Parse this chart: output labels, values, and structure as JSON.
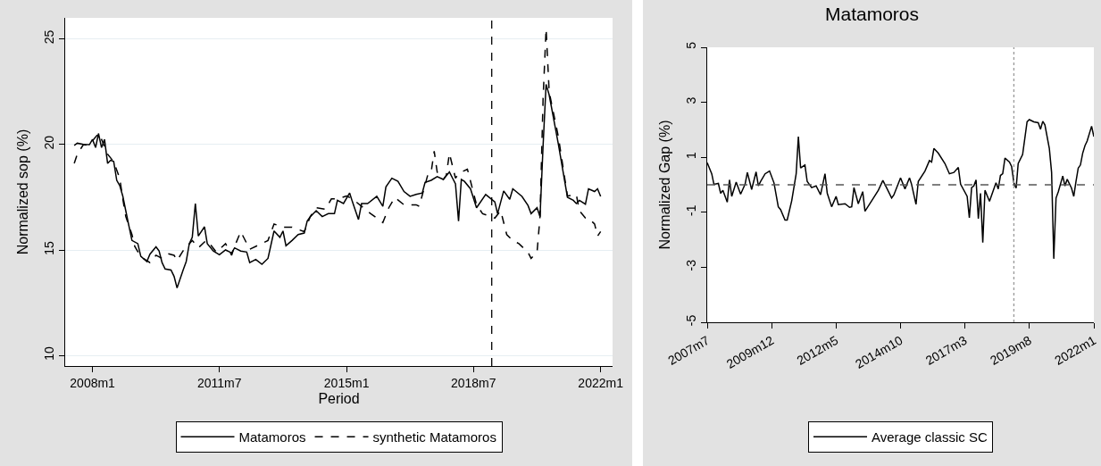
{
  "chart_data": [
    {
      "type": "line",
      "xlabel": "Period",
      "ylabel": "Normalized sop (%)",
      "xlim": [
        "2007-04",
        "2022-05"
      ],
      "ylim": [
        9.5,
        26
      ],
      "xticks": [
        {
          "value": "2008-01",
          "label": "2008m1"
        },
        {
          "value": "2011-07",
          "label": "2011m7"
        },
        {
          "value": "2015-01",
          "label": "2015m1"
        },
        {
          "value": "2018-07",
          "label": "2018m7"
        },
        {
          "value": "2022-01",
          "label": "2022m1"
        }
      ],
      "yticks": [
        10,
        15,
        20,
        25
      ],
      "grid": "y",
      "legend": "bottom",
      "series": [
        {
          "name": "Matamoros",
          "color": "#000000",
          "line_style": "solid",
          "x": [
            "2007-07",
            "2007-08",
            "2007-10",
            "2007-12",
            "2008-01",
            "2008-02",
            "2008-03",
            "2008-04",
            "2008-05",
            "2008-06",
            "2008-07",
            "2008-08",
            "2008-09",
            "2008-10",
            "2008-11",
            "2008-12",
            "2009-01",
            "2009-02",
            "2009-04",
            "2009-05",
            "2009-07",
            "2009-08",
            "2009-10",
            "2009-11",
            "2009-12",
            "2010-01",
            "2010-03",
            "2010-04",
            "2010-05",
            "2010-07",
            "2010-08",
            "2010-09",
            "2010-10",
            "2010-11",
            "2010-12",
            "2011-02",
            "2011-03",
            "2011-05",
            "2011-07",
            "2011-09",
            "2011-11",
            "2011-12",
            "2012-02",
            "2012-04",
            "2012-05",
            "2012-07",
            "2012-09",
            "2012-11",
            "2013-01",
            "2013-03",
            "2013-04",
            "2013-05",
            "2013-07",
            "2013-09",
            "2013-11",
            "2013-12",
            "2014-01",
            "2014-03",
            "2014-05",
            "2014-07",
            "2014-09",
            "2014-10",
            "2014-12",
            "2015-02",
            "2015-03",
            "2015-05",
            "2015-06",
            "2015-08",
            "2015-11",
            "2016-01",
            "2016-02",
            "2016-04",
            "2016-06",
            "2016-08",
            "2016-10",
            "2016-12",
            "2017-02",
            "2017-03",
            "2017-05",
            "2017-07",
            "2017-09",
            "2017-11",
            "2018-01",
            "2018-02",
            "2018-03",
            "2018-04",
            "2018-06",
            "2018-08",
            "2018-11",
            "2019-02",
            "2019-03",
            "2019-05",
            "2019-07",
            "2019-08",
            "2019-11",
            "2020-01",
            "2020-02",
            "2020-04",
            "2020-05",
            "2020-06",
            "2020-07",
            "2020-08",
            "2020-11",
            "2021-02",
            "2021-04",
            "2021-05",
            "2021-06",
            "2021-08",
            "2021-09",
            "2021-11",
            "2021-12",
            "2022-01"
          ],
          "values": [
            19.96,
            20.06,
            20.0,
            19.99,
            20.24,
            19.85,
            20.52,
            19.85,
            20.24,
            19.1,
            19.25,
            19.2,
            18.3,
            18.05,
            17.55,
            16.85,
            16.15,
            15.45,
            15.3,
            14.7,
            14.45,
            14.8,
            15.15,
            14.95,
            14.4,
            14.1,
            14.05,
            13.75,
            13.2,
            14.05,
            14.45,
            15.3,
            15.6,
            17.2,
            15.66,
            16.1,
            15.3,
            14.95,
            14.77,
            15.0,
            14.86,
            15.1,
            14.95,
            14.9,
            14.4,
            14.55,
            14.32,
            14.6,
            15.9,
            15.6,
            15.9,
            15.2,
            15.45,
            15.73,
            15.8,
            16.37,
            16.58,
            16.86,
            16.58,
            16.72,
            16.72,
            17.35,
            17.2,
            17.7,
            17.28,
            16.44,
            17.2,
            17.2,
            17.54,
            17.07,
            17.99,
            18.4,
            18.25,
            17.77,
            17.54,
            17.63,
            17.7,
            18.2,
            18.3,
            18.48,
            18.34,
            18.7,
            18.13,
            16.37,
            18.34,
            18.25,
            17.9,
            17.0,
            17.63,
            17.28,
            16.72,
            17.8,
            17.4,
            17.9,
            17.54,
            17.11,
            16.72,
            17.0,
            16.58,
            19.96,
            22.85,
            22.35,
            20.03,
            17.5,
            17.35,
            17.2,
            17.35,
            17.17,
            17.9,
            17.77,
            17.9,
            17.54
          ]
        },
        {
          "name": "synthetic Matamoros",
          "color": "#000000",
          "line_style": "dashed",
          "x": [
            "2007-07",
            "2007-08",
            "2007-10",
            "2007-12",
            "2008-01",
            "2008-03",
            "2008-04",
            "2008-06",
            "2008-08",
            "2008-10",
            "2008-11",
            "2008-12",
            "2009-02",
            "2009-03",
            "2009-05",
            "2009-08",
            "2009-10",
            "2009-12",
            "2010-02",
            "2010-04",
            "2010-05",
            "2010-07",
            "2010-10",
            "2010-12",
            "2011-02",
            "2011-03",
            "2011-06",
            "2011-09",
            "2011-11",
            "2011-12",
            "2012-02",
            "2012-05",
            "2012-08",
            "2012-11",
            "2013-01",
            "2013-04",
            "2013-07",
            "2013-11",
            "2014-01",
            "2014-03",
            "2014-06",
            "2014-08",
            "2014-10",
            "2015-01",
            "2015-03",
            "2015-06",
            "2015-09",
            "2016-01",
            "2016-03",
            "2016-05",
            "2016-08",
            "2016-12",
            "2017-01",
            "2017-04",
            "2017-05",
            "2017-06",
            "2017-07",
            "2017-09",
            "2017-10",
            "2017-11",
            "2018-01",
            "2018-02",
            "2018-05",
            "2018-06",
            "2018-08",
            "2018-10",
            "2019-02",
            "2019-04",
            "2019-06",
            "2019-08",
            "2019-10",
            "2020-01",
            "2020-02",
            "2020-04",
            "2020-05",
            "2020-06",
            "2020-07",
            "2020-08",
            "2020-11",
            "2021-02",
            "2021-05",
            "2021-06",
            "2021-08",
            "2021-09",
            "2021-11",
            "2021-12",
            "2022-01"
          ],
          "values": [
            19.1,
            19.54,
            19.99,
            19.96,
            20.17,
            20.52,
            20.24,
            19.54,
            19.18,
            18.4,
            17.42,
            16.58,
            15.73,
            15.17,
            14.68,
            14.4,
            14.75,
            14.6,
            14.82,
            14.75,
            14.5,
            14.96,
            15.45,
            15.1,
            15.38,
            15.45,
            14.89,
            15.3,
            14.75,
            15.17,
            15.87,
            15.03,
            15.24,
            15.45,
            16.23,
            16.08,
            16.08,
            15.87,
            16.58,
            17.0,
            16.93,
            17.42,
            17.42,
            17.56,
            17.42,
            17.07,
            16.72,
            16.3,
            17.0,
            17.49,
            17.14,
            17.14,
            17.07,
            18.62,
            18.69,
            19.68,
            18.69,
            18.34,
            18.55,
            19.58,
            18.4,
            18.62,
            18.83,
            18.27,
            17.14,
            16.72,
            16.51,
            16.86,
            15.73,
            15.45,
            15.3,
            14.89,
            14.6,
            14.89,
            16.58,
            22.2,
            25.48,
            22.49,
            20.38,
            17.56,
            17.63,
            16.86,
            16.51,
            16.51,
            16.23,
            15.66,
            15.87
          ]
        }
      ],
      "ref_lines": [
        {
          "axis": "x",
          "value": "2019-01",
          "color": "#000000",
          "line_style": "dashed"
        }
      ]
    },
    {
      "type": "line",
      "title": "Matamoros",
      "ylabel": "Normalized Gap (%)",
      "xlim": [
        "2007-07",
        "2022-01"
      ],
      "ylim": [
        -5,
        5
      ],
      "xticks": [
        {
          "value": "2007-07",
          "label": "2007m7"
        },
        {
          "value": "2009-12",
          "label": "2009m12"
        },
        {
          "value": "2012-05",
          "label": "2012m5"
        },
        {
          "value": "2014-10",
          "label": "2014m10"
        },
        {
          "value": "2017-03",
          "label": "2017m3"
        },
        {
          "value": "2019-08",
          "label": "2019m8"
        },
        {
          "value": "2022-01",
          "label": "2022m1"
        }
      ],
      "yticks": [
        -5,
        -3,
        -1,
        1,
        3,
        5
      ],
      "grid": false,
      "legend": "bottom",
      "x": [
        "2007-07",
        "2007-09",
        "2007-10",
        "2007-12",
        "2008-01",
        "2008-02",
        "2008-04",
        "2008-05",
        "2008-06",
        "2008-08",
        "2008-10",
        "2008-12",
        "2009-01",
        "2009-03",
        "2009-05",
        "2009-06",
        "2009-07",
        "2009-09",
        "2009-11",
        "2010-01",
        "2010-03",
        "2010-04",
        "2010-06",
        "2010-07",
        "2010-09",
        "2010-11",
        "2010-12",
        "2011-01",
        "2011-03",
        "2011-04",
        "2011-06",
        "2011-08",
        "2011-10",
        "2011-12",
        "2012-01",
        "2012-03",
        "2012-05",
        "2012-06",
        "2012-09",
        "2012-11",
        "2012-12",
        "2013-01",
        "2013-03",
        "2013-05",
        "2013-06",
        "2013-09",
        "2013-12",
        "2014-02",
        "2014-04",
        "2014-06",
        "2014-07",
        "2014-10",
        "2014-12",
        "2015-02",
        "2015-03",
        "2015-05",
        "2015-06",
        "2015-09",
        "2015-11",
        "2015-12",
        "2016-01",
        "2016-03",
        "2016-06",
        "2016-08",
        "2016-10",
        "2016-12",
        "2017-01",
        "2017-04",
        "2017-05",
        "2017-06",
        "2017-07",
        "2017-08",
        "2017-09",
        "2017-10",
        "2017-11",
        "2017-12",
        "2018-02",
        "2018-05",
        "2018-06",
        "2018-07",
        "2018-08",
        "2018-09",
        "2018-11",
        "2018-12",
        "2019-01",
        "2019-02",
        "2019-03",
        "2019-05",
        "2019-07",
        "2019-08",
        "2019-10",
        "2019-12",
        "2020-01",
        "2020-02",
        "2020-03",
        "2020-05",
        "2020-06",
        "2020-07",
        "2020-08",
        "2020-09",
        "2020-11",
        "2020-12",
        "2021-01",
        "2021-03",
        "2021-04",
        "2021-05",
        "2021-06",
        "2021-07",
        "2021-08",
        "2021-09",
        "2021-10",
        "2021-12",
        "2022-01"
      ],
      "series": [
        {
          "name": "Average classic SC",
          "color": "#000000",
          "line_style": "solid",
          "values": [
            0.8,
            0.4,
            0.02,
            0.05,
            -0.31,
            -0.2,
            -0.63,
            0.18,
            -0.42,
            0.1,
            -0.34,
            0.02,
            0.45,
            -0.17,
            0.47,
            -0.04,
            0.12,
            0.4,
            0.5,
            0.07,
            -0.8,
            -0.9,
            -1.28,
            -1.28,
            -0.58,
            0.4,
            1.75,
            0.61,
            0.72,
            0.12,
            -0.1,
            -0.04,
            -0.36,
            0.4,
            -0.31,
            -0.8,
            -0.42,
            -0.72,
            -0.69,
            -0.82,
            -0.8,
            -0.1,
            -0.69,
            -0.25,
            -0.96,
            -0.58,
            -0.2,
            0.16,
            -0.15,
            -0.48,
            -0.37,
            0.25,
            -0.15,
            0.25,
            0.02,
            -0.71,
            0.12,
            0.5,
            0.88,
            0.83,
            1.32,
            1.15,
            0.77,
            0.4,
            0.45,
            0.63,
            0.02,
            -0.42,
            -1.2,
            -0.1,
            -0.04,
            0.18,
            -1.23,
            -0.31,
            -2.1,
            -0.2,
            -0.6,
            0.07,
            -0.15,
            0.34,
            0.4,
            0.97,
            0.83,
            0.67,
            0.07,
            -0.12,
            0.77,
            1.1,
            2.29,
            2.37,
            2.29,
            2.26,
            2.02,
            2.31,
            2.18,
            1.32,
            0.45,
            -2.69,
            -0.48,
            -0.25,
            0.32,
            -0.04,
            0.2,
            -0.12,
            -0.42,
            0.12,
            0.61,
            0.72,
            1.15,
            1.42,
            1.59,
            2.13,
            1.75
          ]
        }
      ],
      "ref_lines": [
        {
          "axis": "x",
          "value": "2019-01",
          "color": "#999999",
          "line_style": "dotted"
        },
        {
          "axis": "y",
          "value": 0,
          "color": "#555555",
          "line_style": "dashed"
        }
      ]
    }
  ]
}
